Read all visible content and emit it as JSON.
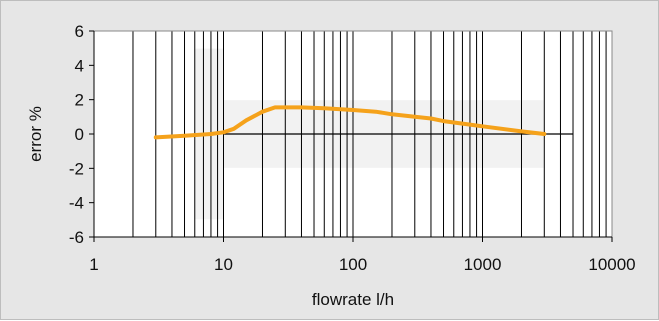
{
  "chart_data": {
    "type": "line",
    "title": "",
    "xlabel": "flowrate l/h",
    "ylabel": "error %",
    "x_scale": "log",
    "xlim": [
      1,
      10000
    ],
    "ylim": [
      -6,
      6
    ],
    "x_ticks": [
      1,
      10,
      100,
      1000,
      10000
    ],
    "x_tick_labels": [
      "1",
      "10",
      "100",
      "1000",
      "10000"
    ],
    "y_ticks": [
      6,
      4,
      2,
      0,
      -2,
      -4,
      -6
    ],
    "y_tick_labels": [
      "6",
      "4",
      "2",
      "0",
      "-2",
      "-4",
      "-6"
    ],
    "grid": true,
    "colors": {
      "series": "#f5a21b",
      "panel_background": "#e6e6e6",
      "plot_background": "#ffffff",
      "tolerance_band": "#f2f2f2"
    },
    "series": [
      {
        "x": [
          3,
          5,
          8,
          10,
          12,
          15,
          20,
          25,
          30,
          40,
          60,
          100,
          150,
          200,
          300,
          400,
          500,
          800,
          1000,
          2000,
          3000
        ],
        "y": [
          -0.2,
          -0.1,
          0.0,
          0.1,
          0.3,
          0.8,
          1.3,
          1.55,
          1.55,
          1.55,
          1.5,
          1.4,
          1.3,
          1.15,
          1.0,
          0.9,
          0.75,
          0.55,
          0.45,
          0.15,
          0.0
        ]
      }
    ],
    "tolerance_band": {
      "x_min": 10,
      "x_max": 3000,
      "y_min": -2,
      "y_max": 2,
      "extended_x_min": 6,
      "extended_y_min": -5,
      "extended_y_max": 5
    },
    "zero_line_range": [
      10,
      5000
    ]
  }
}
